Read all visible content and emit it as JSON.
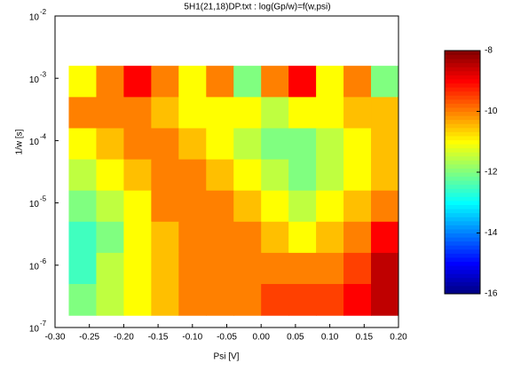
{
  "chart_data": {
    "type": "contour",
    "title": "5H1(21,18)DP.txt : log(Gp/w)=f(w,psi)",
    "x_label": "Psi [V]",
    "y_label": "1/w [s]",
    "xlim": [
      -0.3,
      0.2
    ],
    "xticks": [
      {
        "value": -0.3,
        "label": "-0.30"
      },
      {
        "value": -0.25,
        "label": "-0.25"
      },
      {
        "value": -0.2,
        "label": "-0.20"
      },
      {
        "value": -0.15,
        "label": "-0.15"
      },
      {
        "value": -0.1,
        "label": "-0.10"
      },
      {
        "value": -0.05,
        "label": "-0.05"
      },
      {
        "value": 0,
        "label": "0.00"
      },
      {
        "value": 0.05,
        "label": "0.05"
      },
      {
        "value": 0.1,
        "label": "0.10"
      },
      {
        "value": 0.15,
        "label": "0.15"
      },
      {
        "value": 0.2,
        "label": "0.20"
      }
    ],
    "ylim": [
      1e-07,
      0.01
    ],
    "y_log": true,
    "yticks": [
      {
        "value": 1e-07,
        "label": "10",
        "exponent": "-7"
      },
      {
        "value": 1e-06,
        "label": "10",
        "exponent": "-6"
      },
      {
        "value": 1e-05,
        "label": "10",
        "exponent": "-5"
      },
      {
        "value": 0.0001,
        "label": "10",
        "exponent": "-4"
      },
      {
        "value": 0.001,
        "label": "10",
        "exponent": "-3"
      },
      {
        "value": 0.01,
        "label": "10",
        "exponent": "-2"
      }
    ],
    "x": [
      -0.26,
      -0.22,
      -0.18,
      -0.14,
      -0.1,
      -0.06,
      -0.02,
      0.02,
      0.06,
      0.1,
      0.14,
      0.18
    ],
    "y": [
      0.00089,
      0.00028,
      8.9e-05,
      2.8e-05,
      8.9e-06,
      2.8e-06,
      8.9e-07,
      2.8e-07
    ],
    "z": [
      [
        -11,
        -10,
        -9,
        -10,
        -11,
        -10,
        -12,
        -10,
        -9,
        -11,
        -10,
        -12
      ],
      [
        -10,
        -10,
        -10,
        -10.5,
        -11,
        -11,
        -11,
        -11.5,
        -11,
        -11,
        -10.5,
        -10.5
      ],
      [
        -11,
        -10.5,
        -10,
        -10,
        -10.5,
        -11,
        -11.5,
        -12,
        -12,
        -11.5,
        -11,
        -10.5
      ],
      [
        -11.5,
        -11,
        -10.5,
        -10,
        -10,
        -10.5,
        -11,
        -11.5,
        -12,
        -11.5,
        -11,
        -10.5
      ],
      [
        -12,
        -11.5,
        -11,
        -10,
        -10,
        -10,
        -10.5,
        -11,
        -11.5,
        -11,
        -10.5,
        -10
      ],
      [
        -12.5,
        -12,
        -11,
        -10.5,
        -10,
        -10,
        -10,
        -10.5,
        -11,
        -10.5,
        -10,
        -9
      ],
      [
        -12.5,
        -11.5,
        -11,
        -10.5,
        -10,
        -10,
        -10,
        -10,
        -10,
        -10,
        -9.5,
        -8.5
      ],
      [
        -12,
        -11.5,
        -11,
        -10.5,
        -10,
        -10,
        -10,
        -9.5,
        -9.5,
        -9.5,
        -9,
        -8.5
      ]
    ],
    "colormap": "jet",
    "clim": [
      -16,
      -8
    ],
    "cticks": [
      -16,
      -14,
      -12,
      -10,
      -8
    ]
  }
}
